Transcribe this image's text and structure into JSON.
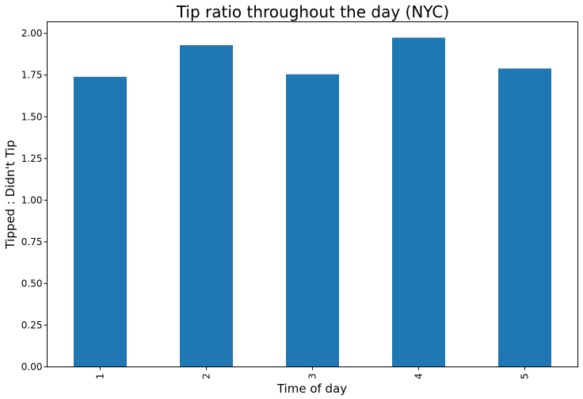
{
  "chart_data": {
    "type": "bar",
    "title": "Tip ratio throughout the day (NYC)",
    "xlabel": "Time of day",
    "ylabel": "Tipped : Didn't Tip",
    "categories": [
      "1",
      "2",
      "3",
      "4",
      "5"
    ],
    "values": [
      1.74,
      1.93,
      1.755,
      1.975,
      1.79
    ],
    "ylim": [
      0,
      2.07
    ],
    "yticks": [
      "0.00",
      "0.25",
      "0.50",
      "0.75",
      "1.00",
      "1.25",
      "1.50",
      "1.75",
      "2.00"
    ],
    "grid": false,
    "bar_color": "#1f77b4"
  }
}
